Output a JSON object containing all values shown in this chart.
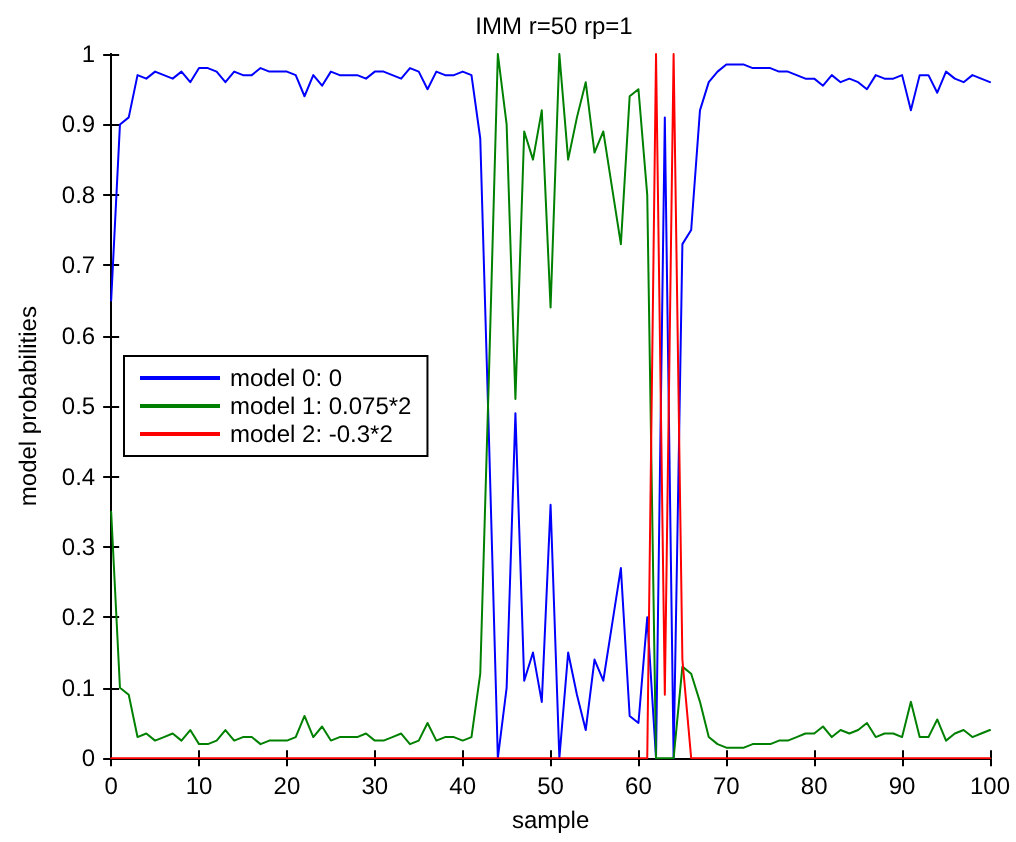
{
  "chart_data": {
    "type": "line",
    "title": "IMM r=50 rp=1",
    "xlabel": "sample",
    "ylabel": "model probabilities",
    "x": [
      0,
      1,
      2,
      3,
      4,
      5,
      6,
      7,
      8,
      9,
      10,
      11,
      12,
      13,
      14,
      15,
      16,
      17,
      18,
      19,
      20,
      21,
      22,
      23,
      24,
      25,
      26,
      27,
      28,
      29,
      30,
      31,
      32,
      33,
      34,
      35,
      36,
      37,
      38,
      39,
      40,
      41,
      42,
      43,
      44,
      45,
      46,
      47,
      48,
      49,
      50,
      51,
      52,
      53,
      54,
      55,
      56,
      57,
      58,
      59,
      60,
      61,
      62,
      63,
      64,
      65,
      66,
      67,
      68,
      69,
      70,
      71,
      72,
      73,
      74,
      75,
      76,
      77,
      78,
      79,
      80,
      81,
      82,
      83,
      84,
      85,
      86,
      87,
      88,
      89,
      90,
      91,
      92,
      93,
      94,
      95,
      96,
      97,
      98,
      99,
      100
    ],
    "series": [
      {
        "name": "model 0: 0",
        "color": "#0000ff",
        "values": [
          0.65,
          0.9,
          0.91,
          0.97,
          0.965,
          0.975,
          0.97,
          0.965,
          0.975,
          0.96,
          0.98,
          0.98,
          0.975,
          0.96,
          0.975,
          0.97,
          0.97,
          0.98,
          0.975,
          0.975,
          0.975,
          0.97,
          0.94,
          0.97,
          0.955,
          0.975,
          0.97,
          0.97,
          0.97,
          0.965,
          0.975,
          0.975,
          0.97,
          0.965,
          0.98,
          0.975,
          0.95,
          0.975,
          0.97,
          0.97,
          0.975,
          0.97,
          0.88,
          0.45,
          0,
          0.1,
          0.49,
          0.11,
          0.15,
          0.08,
          0.36,
          0,
          0.15,
          0.09,
          0.04,
          0.14,
          0.11,
          0.19,
          0.27,
          0.06,
          0.05,
          0.2,
          0,
          0.91,
          0,
          0.73,
          0.75,
          0.92,
          0.96,
          0.975,
          0.985,
          0.985,
          0.985,
          0.98,
          0.98,
          0.98,
          0.975,
          0.975,
          0.97,
          0.965,
          0.965,
          0.955,
          0.97,
          0.96,
          0.965,
          0.96,
          0.95,
          0.97,
          0.965,
          0.965,
          0.97,
          0.92,
          0.97,
          0.97,
          0.945,
          0.975,
          0.965,
          0.96,
          0.97,
          0.965,
          0.96
        ]
      },
      {
        "name": "model 1: 0.075*2",
        "color": "#008000",
        "values": [
          0.35,
          0.1,
          0.09,
          0.03,
          0.035,
          0.025,
          0.03,
          0.035,
          0.025,
          0.04,
          0.02,
          0.02,
          0.025,
          0.04,
          0.025,
          0.03,
          0.03,
          0.02,
          0.025,
          0.025,
          0.025,
          0.03,
          0.06,
          0.03,
          0.045,
          0.025,
          0.03,
          0.03,
          0.03,
          0.035,
          0.025,
          0.025,
          0.03,
          0.035,
          0.02,
          0.025,
          0.05,
          0.025,
          0.03,
          0.03,
          0.025,
          0.03,
          0.12,
          0.55,
          1,
          0.9,
          0.51,
          0.89,
          0.85,
          0.92,
          0.64,
          1,
          0.85,
          0.91,
          0.96,
          0.86,
          0.89,
          0.81,
          0.73,
          0.94,
          0.95,
          0.8,
          0,
          0,
          0,
          0.13,
          0.12,
          0.08,
          0.03,
          0.02,
          0.015,
          0.015,
          0.015,
          0.02,
          0.02,
          0.02,
          0.025,
          0.025,
          0.03,
          0.035,
          0.035,
          0.045,
          0.03,
          0.04,
          0.035,
          0.04,
          0.05,
          0.03,
          0.035,
          0.035,
          0.03,
          0.08,
          0.03,
          0.03,
          0.055,
          0.025,
          0.035,
          0.04,
          0.03,
          0.035,
          0.04
        ]
      },
      {
        "name": "model 2: -0.3*2",
        "color": "#ff0000",
        "values": [
          0,
          0,
          0,
          0,
          0,
          0,
          0,
          0,
          0,
          0,
          0,
          0,
          0,
          0,
          0,
          0,
          0,
          0,
          0,
          0,
          0,
          0,
          0,
          0,
          0,
          0,
          0,
          0,
          0,
          0,
          0,
          0,
          0,
          0,
          0,
          0,
          0,
          0,
          0,
          0,
          0,
          0,
          0,
          0,
          0,
          0,
          0,
          0,
          0,
          0,
          0,
          0,
          0,
          0,
          0,
          0,
          0,
          0,
          0,
          0,
          0,
          0,
          1,
          0.09,
          1,
          0.14,
          0,
          0,
          0,
          0,
          0,
          0,
          0,
          0,
          0,
          0,
          0,
          0,
          0,
          0,
          0,
          0,
          0,
          0,
          0,
          0,
          0,
          0,
          0,
          0,
          0,
          0,
          0,
          0,
          0,
          0,
          0,
          0,
          0,
          0,
          0
        ]
      }
    ],
    "xlim": [
      0,
      100
    ],
    "xticks": [
      0,
      10,
      20,
      30,
      40,
      50,
      60,
      70,
      80,
      90,
      100
    ],
    "ylim": [
      0,
      1
    ],
    "yticks": [
      0,
      0.1,
      0.2,
      0.3,
      0.4,
      0.5,
      0.6,
      0.7,
      0.8,
      0.9,
      1
    ],
    "legend": "left",
    "grid": false,
    "marker": "none",
    "line_style": "solid"
  }
}
